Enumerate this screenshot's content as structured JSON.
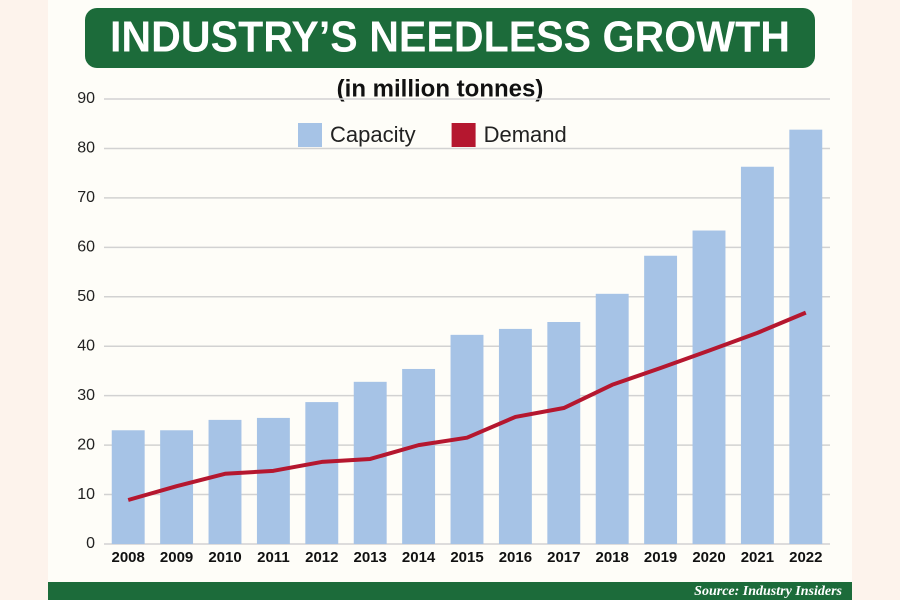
{
  "chart_data": {
    "type": "bar-line",
    "title": "INDUSTRY’S NEEDLESS GROWTH",
    "subtitle": "(in million tonnes)",
    "source": "Source: Industry Insiders",
    "categories": [
      "2008",
      "2009",
      "2010",
      "2011",
      "2012",
      "2013",
      "2014",
      "2015",
      "2016",
      "2017",
      "2018",
      "2019",
      "2020",
      "2021",
      "2022"
    ],
    "series": [
      {
        "name": "Capacity",
        "type": "bar",
        "color": "#a6c3e6",
        "values": [
          23,
          23,
          25.1,
          25.5,
          28.7,
          32.8,
          35.4,
          42.3,
          43.5,
          44.9,
          50.6,
          58.3,
          63.4,
          76.3,
          83.8
        ]
      },
      {
        "name": "Demand",
        "type": "line",
        "color": "#b5172f",
        "values": [
          8.9,
          11.7,
          14.2,
          14.8,
          16.6,
          17.2,
          20,
          21.5,
          25.7,
          27.5,
          32.2,
          35.6,
          39.1,
          42.7,
          46.8
        ]
      }
    ],
    "ylim": [
      0,
      90
    ],
    "yticks": [
      0,
      10,
      20,
      30,
      40,
      50,
      60,
      70,
      80,
      90
    ],
    "grid": true,
    "legend": "top"
  }
}
